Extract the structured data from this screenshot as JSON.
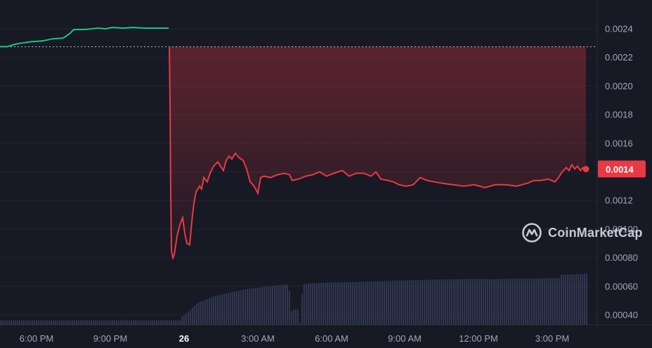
{
  "chart_data": {
    "type": "line",
    "series_segments": [
      {
        "name": "",
        "color": "#16c784",
        "points": [
          [
            0,
            0.002275
          ],
          [
            10,
            0.002275
          ],
          [
            20,
            0.00229
          ],
          [
            30,
            0.0023
          ],
          [
            45,
            0.00231
          ],
          [
            60,
            0.002315
          ],
          [
            75,
            0.00233
          ],
          [
            90,
            0.002335
          ],
          [
            100,
            0.00237
          ],
          [
            105,
            0.002395
          ],
          [
            120,
            0.002395
          ],
          [
            140,
            0.002405
          ],
          [
            150,
            0.0024
          ],
          [
            160,
            0.00241
          ],
          [
            175,
            0.002405
          ],
          [
            190,
            0.00241
          ],
          [
            205,
            0.002405
          ],
          [
            225,
            0.002405
          ],
          [
            240,
            0.002405
          ]
        ]
      },
      {
        "name": "",
        "color": "#ea3943",
        "points": [
          [
            241,
            0.00227
          ],
          [
            242,
            0.0019
          ],
          [
            243,
            0.00125
          ],
          [
            244,
            0.00085
          ],
          [
            246,
            0.000798
          ],
          [
            248,
            0.00082
          ],
          [
            252,
            0.00095
          ],
          [
            256,
            0.00103
          ],
          [
            260,
            0.00108
          ],
          [
            263,
            0.00097
          ],
          [
            266,
            0.0009
          ],
          [
            270,
            0.00089
          ],
          [
            273,
            0.00105
          ],
          [
            276,
            0.00118
          ],
          [
            279,
            0.00126
          ],
          [
            284,
            0.0013
          ],
          [
            287,
            0.00128
          ],
          [
            290,
            0.00136
          ],
          [
            295,
            0.00133
          ],
          [
            299,
            0.00139
          ],
          [
            304,
            0.00144
          ],
          [
            310,
            0.00147
          ],
          [
            315,
            0.00143
          ],
          [
            318,
            0.00141
          ],
          [
            322,
            0.00148
          ],
          [
            326,
            0.00151
          ],
          [
            330,
            0.00149
          ],
          [
            335,
            0.00153
          ],
          [
            340,
            0.0015
          ],
          [
            346,
            0.00148
          ],
          [
            351,
            0.00142
          ],
          [
            356,
            0.00133
          ],
          [
            360,
            0.00131
          ],
          [
            364,
            0.00128
          ],
          [
            367,
            0.00125
          ],
          [
            371,
            0.00136
          ],
          [
            376,
            0.00137
          ],
          [
            385,
            0.00136
          ],
          [
            395,
            0.00138
          ],
          [
            405,
            0.00139
          ],
          [
            412,
            0.00138
          ],
          [
            416,
            0.00134
          ],
          [
            425,
            0.00135
          ],
          [
            435,
            0.00137
          ],
          [
            445,
            0.00138
          ],
          [
            455,
            0.0014
          ],
          [
            465,
            0.00137
          ],
          [
            475,
            0.00139
          ],
          [
            487,
            0.00141
          ],
          [
            497,
            0.00137
          ],
          [
            507,
            0.00139
          ],
          [
            518,
            0.00139
          ],
          [
            528,
            0.00137
          ],
          [
            535,
            0.0014
          ],
          [
            542,
            0.00135
          ],
          [
            552,
            0.00134
          ],
          [
            560,
            0.00133
          ],
          [
            568,
            0.00131
          ],
          [
            578,
            0.0013
          ],
          [
            588,
            0.00131
          ],
          [
            598,
            0.00136
          ],
          [
            608,
            0.00134
          ],
          [
            618,
            0.00133
          ],
          [
            630,
            0.00132
          ],
          [
            645,
            0.00131
          ],
          [
            660,
            0.0013
          ],
          [
            675,
            0.00131
          ],
          [
            690,
            0.00129
          ],
          [
            705,
            0.00131
          ],
          [
            720,
            0.00131
          ],
          [
            735,
            0.0013
          ],
          [
            750,
            0.00132
          ],
          [
            760,
            0.00134
          ],
          [
            770,
            0.00134
          ],
          [
            780,
            0.00135
          ],
          [
            790,
            0.00133
          ],
          [
            795,
            0.00136
          ],
          [
            800,
            0.0014
          ],
          [
            806,
            0.00143
          ],
          [
            810,
            0.00141
          ],
          [
            814,
            0.00145
          ],
          [
            818,
            0.00142
          ],
          [
            822,
            0.00144
          ],
          [
            826,
            0.00141
          ],
          [
            830,
            0.00143
          ],
          [
            834,
            0.00142
          ]
        ]
      }
    ],
    "volume": [
      [
        0,
        0.1
      ],
      [
        240,
        0.1
      ],
      [
        241,
        0.1
      ],
      [
        260,
        0.2
      ],
      [
        270,
        0.35
      ],
      [
        280,
        0.5
      ],
      [
        295,
        0.6
      ],
      [
        310,
        0.68
      ],
      [
        330,
        0.75
      ],
      [
        350,
        0.82
      ],
      [
        370,
        0.86
      ],
      [
        390,
        0.9
      ],
      [
        410,
        0.93
      ],
      [
        416,
        0.0
      ],
      [
        426,
        0.0
      ],
      [
        430,
        0.93
      ],
      [
        440,
        0.95
      ],
      [
        470,
        0.97
      ],
      [
        500,
        0.98
      ],
      [
        540,
        1.0
      ],
      [
        580,
        1.02
      ],
      [
        620,
        1.04
      ],
      [
        660,
        1.05
      ],
      [
        700,
        1.05
      ],
      [
        740,
        1.06
      ],
      [
        780,
        1.07
      ],
      [
        795,
        1.07
      ],
      [
        797,
        1.15
      ],
      [
        820,
        1.16
      ],
      [
        835,
        1.17
      ]
    ],
    "x_axis": {
      "ticks": [
        {
          "label": "6:00 PM",
          "pos": 52
        },
        {
          "label": "9:00 PM",
          "pos": 157
        },
        {
          "label": "26",
          "pos": 262,
          "bold": true
        },
        {
          "label": "3:00 AM",
          "pos": 367
        },
        {
          "label": "6:00 AM",
          "pos": 472
        },
        {
          "label": "9:00 AM",
          "pos": 576
        },
        {
          "label": "12:00 PM",
          "pos": 681
        },
        {
          "label": "3:00 PM",
          "pos": 786
        }
      ]
    },
    "y_axis": {
      "range": [
        0.0003,
        0.0026
      ],
      "ticks": [
        "0.0024",
        "0.0022",
        "0.0020",
        "0.0018",
        "0.0016",
        "0.0014",
        "0.0012",
        "0.00100",
        "0.00080",
        "0.00060",
        "0.00040"
      ],
      "tick_values": [
        0.0024,
        0.0022,
        0.002,
        0.0018,
        0.0016,
        0.0014,
        0.0012,
        0.001,
        0.0008,
        0.0006,
        0.0004
      ]
    },
    "reference_line_value": 0.002275,
    "last_price": {
      "label": "0.0014",
      "value": 0.00142,
      "color": "#ea3943"
    },
    "grid": true
  },
  "watermark": {
    "text": "CoinMarketCap",
    "icon": "coinmarketcap-logo-icon"
  }
}
